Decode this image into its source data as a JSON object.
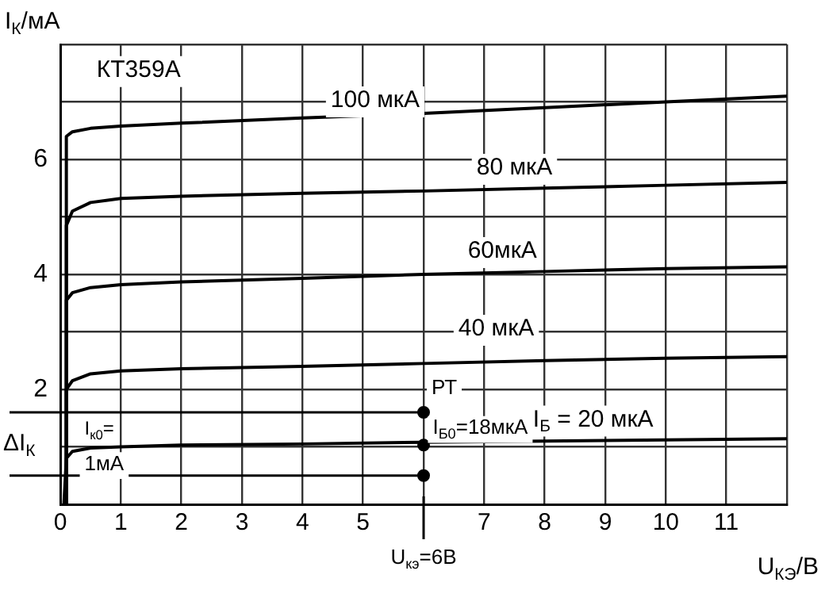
{
  "chart_data": {
    "type": "line",
    "title": "КТ359А",
    "xlabel": "U$_{КЭ}$/В",
    "ylabel": "I$_{К}$/мА",
    "xlim": [
      0,
      12
    ],
    "xticks": [
      0,
      1,
      2,
      3,
      4,
      5,
      {
        "value": 6,
        "label": null
      },
      7,
      8,
      9,
      10,
      11,
      {
        "value": 12,
        "label": null
      }
    ],
    "ylim": [
      0,
      8
    ],
    "yticks": [
      {
        "value": 0,
        "label": null
      },
      {
        "value": 1,
        "label": null
      },
      2,
      {
        "value": 3,
        "label": null
      },
      4,
      {
        "value": 5,
        "label": null
      },
      6,
      {
        "value": 7,
        "label": null
      },
      {
        "value": 8,
        "label": null
      }
    ],
    "grid": true,
    "legend": false,
    "marker": "none",
    "line_style": "solid",
    "series": [
      {
        "name": "100 мкА",
        "color": "#000000",
        "x": [
          0.08,
          0.1,
          0.2,
          0.5,
          1,
          2,
          4,
          6,
          8,
          10,
          12
        ],
        "values": [
          0,
          6.4,
          6.48,
          6.54,
          6.58,
          6.63,
          6.72,
          6.8,
          6.9,
          7.0,
          7.1
        ]
      },
      {
        "name": "80 мкА",
        "color": "#000000",
        "x": [
          0.08,
          0.1,
          0.2,
          0.5,
          1,
          2,
          4,
          6,
          8,
          10,
          12
        ],
        "values": [
          0,
          4.85,
          5.1,
          5.25,
          5.32,
          5.36,
          5.41,
          5.45,
          5.5,
          5.55,
          5.6
        ]
      },
      {
        "name": "60мкА",
        "color": "#000000",
        "x": [
          0.08,
          0.1,
          0.2,
          0.5,
          1,
          2,
          4,
          6,
          8,
          10,
          12
        ],
        "values": [
          0,
          3.55,
          3.68,
          3.77,
          3.82,
          3.87,
          3.93,
          4.0,
          4.05,
          4.1,
          4.13
        ]
      },
      {
        "name": "40 мкА",
        "color": "#000000",
        "x": [
          0.08,
          0.1,
          0.2,
          0.5,
          1,
          2,
          4,
          6,
          8,
          10,
          12
        ],
        "values": [
          0,
          2.0,
          2.15,
          2.27,
          2.32,
          2.36,
          2.4,
          2.45,
          2.5,
          2.54,
          2.57
        ]
      },
      {
        "name": "I$_{Б}$ = 20 мкА",
        "color": "#000000",
        "x": [
          0.06,
          0.1,
          0.2,
          0.5,
          1,
          2,
          4,
          6,
          8,
          10,
          12
        ],
        "values": [
          0,
          0.8,
          0.92,
          0.98,
          1.0,
          1.03,
          1.05,
          1.08,
          1.1,
          1.12,
          1.14
        ]
      },
      {
        "type": "scatter",
        "color": "#000000",
        "marker": "circle",
        "x": [
          6,
          6,
          6
        ],
        "values": [
          1.6,
          1.03,
          0.5
        ]
      }
    ],
    "ref_lines": [
      {
        "axis": "x",
        "value": 6,
        "label": "U$_{кэ}$=6В"
      },
      {
        "axis": "y",
        "value": 1.6
      },
      {
        "axis": "y",
        "value": 0.5
      }
    ],
    "annotations": [
      {
        "text": "РТ",
        "x": 6,
        "y": 1.6
      },
      "I$_{Б0}$=18мкА",
      "I$_{к0}$=1мА",
      "ΔI$_{К}$"
    ]
  }
}
